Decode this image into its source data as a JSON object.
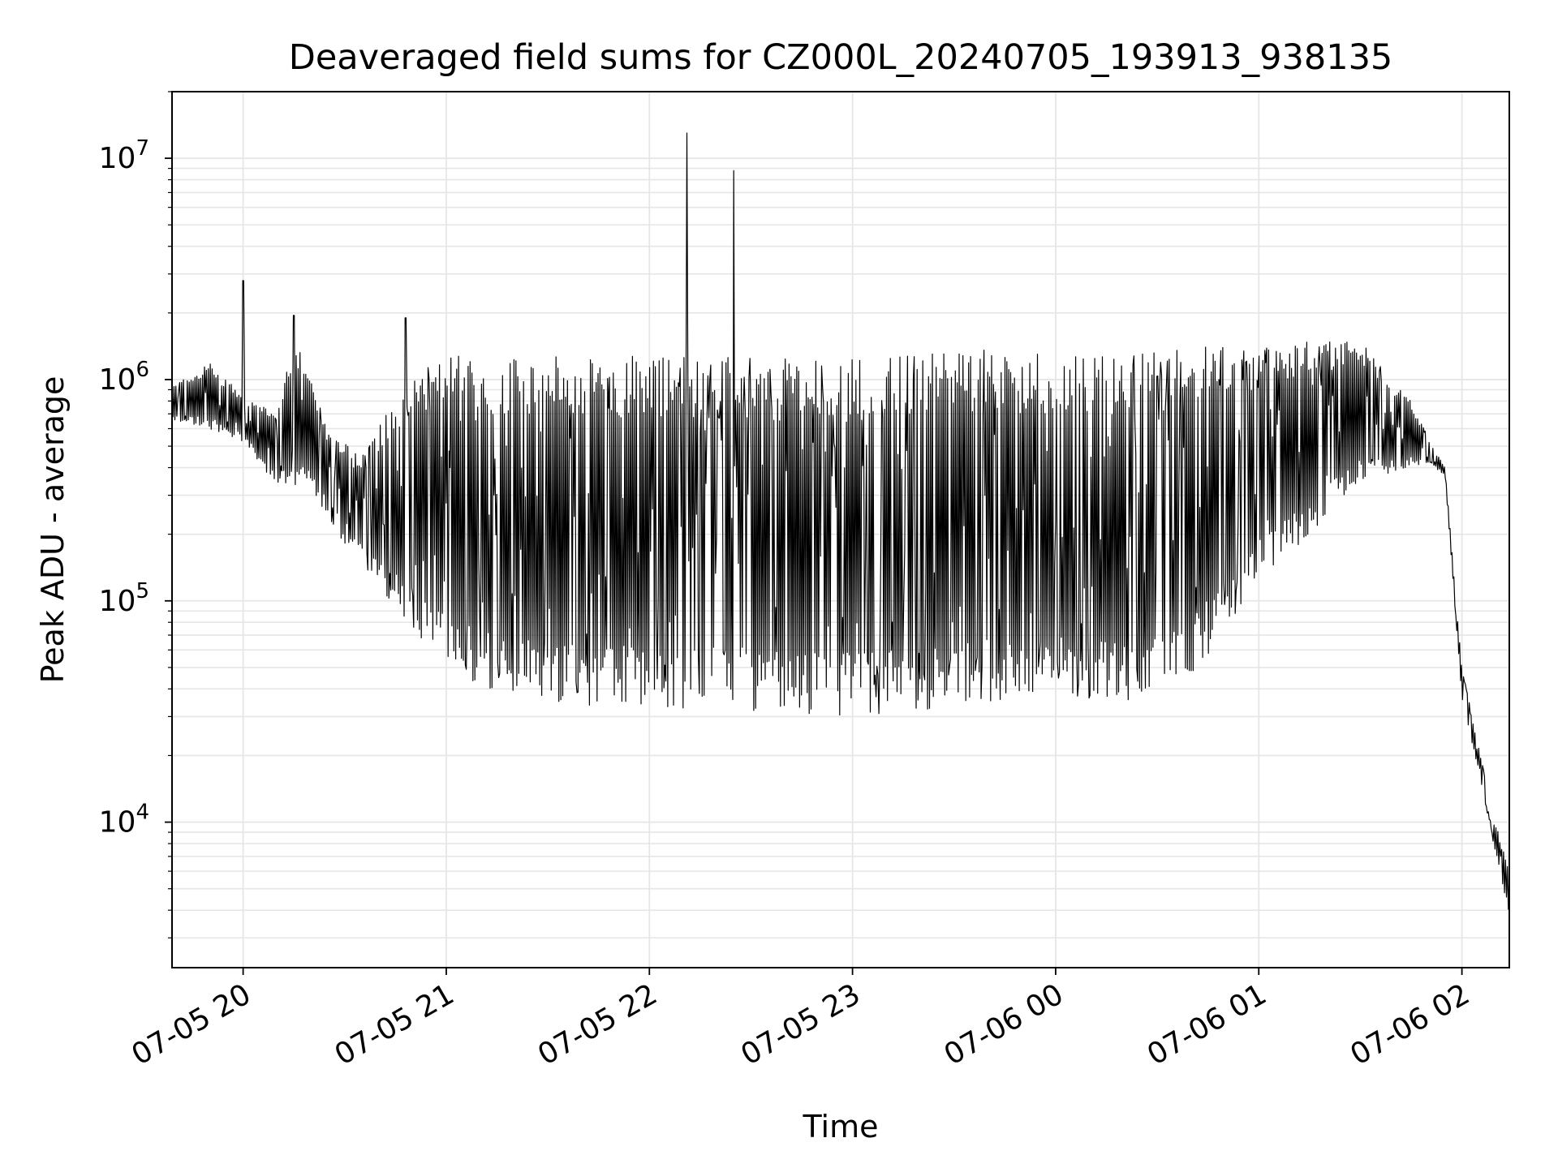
{
  "chart_data": {
    "type": "line",
    "title": "Deaveraged field sums for CZ000L_20240705_193913_938135",
    "xlabel": "Time",
    "ylabel": "Peak ADU - average",
    "yscale": "log",
    "grid": true,
    "grid_minor_y": true,
    "line_color": "#000000",
    "grid_color": "#e6e6e6",
    "x_range": [
      "2024-07-05 19:39",
      "2024-07-06 02:14"
    ],
    "ylim": [
      2200,
      20000000
    ],
    "x_ticks": [
      {
        "value": "2024-07-05 20:00",
        "label": "07-05 20"
      },
      {
        "value": "2024-07-05 21:00",
        "label": "07-05 21"
      },
      {
        "value": "2024-07-05 22:00",
        "label": "07-05 22"
      },
      {
        "value": "2024-07-05 23:00",
        "label": "07-05 23"
      },
      {
        "value": "2024-07-06 00:00",
        "label": "07-06 00"
      },
      {
        "value": "2024-07-06 01:00",
        "label": "07-06 01"
      },
      {
        "value": "2024-07-06 02:00",
        "label": "07-06 02"
      }
    ],
    "y_ticks": [
      {
        "value": 10000,
        "base": "10",
        "exp": "4"
      },
      {
        "value": 100000,
        "base": "10",
        "exp": "5"
      },
      {
        "value": 1000000,
        "base": "10",
        "exp": "6"
      },
      {
        "value": 10000000,
        "base": "10",
        "exp": "7"
      }
    ],
    "series": [
      {
        "high_envelope": [
          [
            "2024-07-05 19:40",
            950000
          ],
          [
            "2024-07-05 19:50",
            1200000
          ],
          [
            "2024-07-05 20:00",
            850000
          ],
          [
            "2024-07-05 20:10",
            700000
          ],
          [
            "2024-07-05 20:15",
            1600000
          ],
          [
            "2024-07-05 20:25",
            600000
          ],
          [
            "2024-07-05 20:35",
            450000
          ],
          [
            "2024-07-05 20:45",
            900000
          ],
          [
            "2024-07-05 21:00",
            1300000
          ],
          [
            "2024-07-05 21:30",
            1300000
          ],
          [
            "2024-07-05 22:00",
            1300000
          ],
          [
            "2024-07-05 22:30",
            1250000
          ],
          [
            "2024-07-05 23:00",
            1250000
          ],
          [
            "2024-07-05 23:30",
            1400000
          ],
          [
            "2024-07-06 00:00",
            1300000
          ],
          [
            "2024-07-06 00:30",
            1350000
          ],
          [
            "2024-07-06 01:00",
            1500000
          ],
          [
            "2024-07-06 01:30",
            1500000
          ],
          [
            "2024-07-06 01:45",
            800000
          ],
          [
            "2024-07-06 01:52",
            480000
          ],
          [
            "2024-07-06 01:55",
            400000
          ],
          [
            "2024-07-06 02:00",
            50000
          ],
          [
            "2024-07-06 02:05",
            22000
          ],
          [
            "2024-07-06 02:10",
            10000
          ],
          [
            "2024-07-06 02:14",
            6000
          ]
        ],
        "low_envelope": [
          [
            "2024-07-05 19:40",
            650000
          ],
          [
            "2024-07-05 19:50",
            600000
          ],
          [
            "2024-07-05 20:00",
            520000
          ],
          [
            "2024-07-05 20:10",
            330000
          ],
          [
            "2024-07-05 20:20",
            320000
          ],
          [
            "2024-07-05 20:30",
            180000
          ],
          [
            "2024-07-05 20:40",
            120000
          ],
          [
            "2024-07-05 20:50",
            70000
          ],
          [
            "2024-07-05 21:00",
            50000
          ],
          [
            "2024-07-05 21:15",
            38000
          ],
          [
            "2024-07-05 21:30",
            34000
          ],
          [
            "2024-07-05 22:00",
            33000
          ],
          [
            "2024-07-05 22:30",
            32000
          ],
          [
            "2024-07-05 23:00",
            30000
          ],
          [
            "2024-07-05 23:30",
            33000
          ],
          [
            "2024-07-06 00:00",
            38000
          ],
          [
            "2024-07-06 00:20",
            34000
          ],
          [
            "2024-07-06 00:40",
            45000
          ],
          [
            "2024-07-06 01:00",
            120000
          ],
          [
            "2024-07-06 01:15",
            200000
          ],
          [
            "2024-07-06 01:30",
            350000
          ],
          [
            "2024-07-06 01:50",
            420000
          ],
          [
            "2024-07-06 01:55",
            370000
          ],
          [
            "2024-07-06 02:00",
            35000
          ],
          [
            "2024-07-06 02:05",
            17000
          ],
          [
            "2024-07-06 02:10",
            7000
          ],
          [
            "2024-07-06 02:14",
            3800
          ]
        ],
        "spikes": [
          [
            "2024-07-05 20:00",
            2800000
          ],
          [
            "2024-07-05 20:15",
            1950000
          ],
          [
            "2024-07-05 20:48",
            1900000
          ],
          [
            "2024-07-05 22:11",
            13000000
          ],
          [
            "2024-07-05 22:25",
            8800000
          ]
        ]
      }
    ]
  }
}
